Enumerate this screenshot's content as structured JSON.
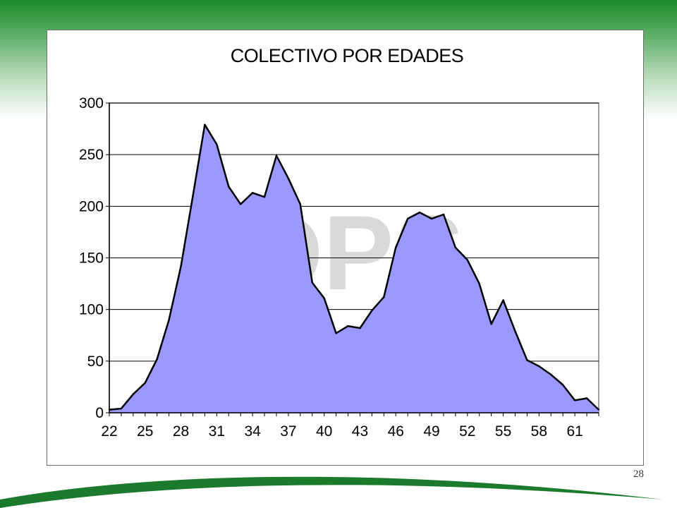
{
  "page": {
    "number": "28"
  },
  "colors": {
    "area_fill": "#9999ff",
    "area_line": "#000000",
    "grid": "#000000",
    "plot_bg": "#ffffff",
    "watermark": "#d9d9d9",
    "brand_green": "#1b8a2a"
  },
  "watermark": {
    "text": "OPS"
  },
  "chart_data": {
    "type": "area",
    "title": "COLECTIVO POR EDADES",
    "xlabel": "",
    "ylabel": "",
    "ylim": [
      0,
      300
    ],
    "yticks": [
      0,
      50,
      100,
      150,
      200,
      250,
      300
    ],
    "xticks": [
      22,
      25,
      28,
      31,
      34,
      37,
      40,
      43,
      46,
      49,
      52,
      55,
      58,
      61
    ],
    "grid": true,
    "legend": "none",
    "x": [
      22,
      23,
      24,
      25,
      26,
      27,
      28,
      29,
      30,
      31,
      32,
      33,
      34,
      35,
      36,
      37,
      38,
      39,
      40,
      41,
      42,
      43,
      44,
      45,
      46,
      47,
      48,
      49,
      50,
      51,
      52,
      53,
      54,
      55,
      56,
      57,
      58,
      59,
      60,
      61,
      62,
      63
    ],
    "values": [
      3,
      4,
      18,
      29,
      52,
      90,
      142,
      210,
      279,
      260,
      219,
      202,
      213,
      209,
      249,
      227,
      202,
      126,
      111,
      77,
      84,
      82,
      99,
      112,
      160,
      188,
      194,
      188,
      192,
      160,
      148,
      125,
      86,
      109,
      79,
      51,
      45,
      37,
      27,
      12,
      14,
      3
    ]
  }
}
